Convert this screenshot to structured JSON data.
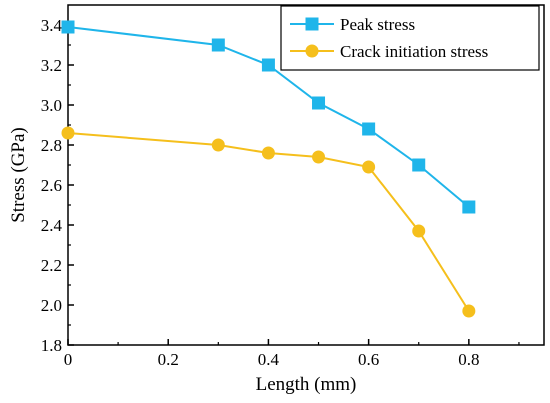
{
  "chart_data": {
    "type": "line",
    "xlabel": "Length (mm)",
    "ylabel": "Stress (GPa)",
    "xlim": [
      0,
      0.95
    ],
    "ylim": [
      1.8,
      3.5
    ],
    "xticks": [
      0,
      0.2,
      0.4,
      0.6,
      0.8
    ],
    "xtick_labels": [
      "0",
      "0.2",
      "0.4",
      "0.6",
      "0.8"
    ],
    "yticks": [
      1.8,
      2.0,
      2.2,
      2.4,
      2.6,
      2.8,
      3.0,
      3.2,
      3.4
    ],
    "ytick_labels": [
      "1.8",
      "2.0",
      "2.2",
      "2.4",
      "2.6",
      "2.8",
      "3.0",
      "3.2",
      "3.4"
    ],
    "grid": false,
    "legend_position": "top-right",
    "series": [
      {
        "name": "Peak stress",
        "marker": "square",
        "color": "#1fb5ea",
        "x": [
          0,
          0.3,
          0.4,
          0.5,
          0.6,
          0.7,
          0.8
        ],
        "y": [
          3.39,
          3.3,
          3.2,
          3.01,
          2.88,
          2.7,
          2.49
        ]
      },
      {
        "name": "Crack initiation stress",
        "marker": "circle",
        "color": "#f5bf1c",
        "x": [
          0,
          0.3,
          0.4,
          0.5,
          0.6,
          0.7,
          0.8
        ],
        "y": [
          2.86,
          2.8,
          2.76,
          2.74,
          2.69,
          2.37,
          1.97
        ]
      }
    ]
  }
}
